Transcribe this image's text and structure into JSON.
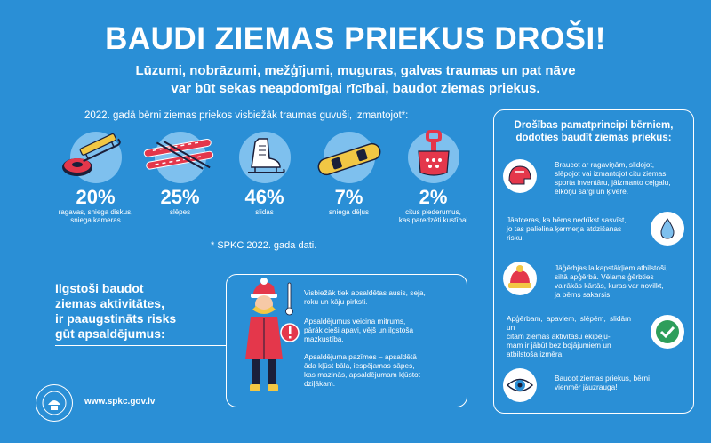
{
  "title": "BAUDI ZIEMAS PRIEKUS DROŠI!",
  "subtitle_line1": "Lūzumi, nobrāzumi, mežģījumi, muguras, galvas traumas un pat nāve",
  "subtitle_line2": "var būt sekas neapdomīgai rīcībai, baudot ziemas priekus.",
  "stats_heading": "2022. gadā bērni ziemas priekos visbiežāk traumas guvuši, izmantojot*:",
  "items": [
    {
      "pct": "20%",
      "label1": "ragavas, sniega diskus,",
      "label2": "sniega kameras",
      "icon": "sled-icon"
    },
    {
      "pct": "25%",
      "label1": "slēpes",
      "label2": "",
      "icon": "skis-icon"
    },
    {
      "pct": "46%",
      "label1": "slidas",
      "label2": "",
      "icon": "skate-icon"
    },
    {
      "pct": "7%",
      "label1": "sniega dēļus",
      "label2": "",
      "icon": "snowboard-icon"
    },
    {
      "pct": "2%",
      "label1": "citus piederumus,",
      "label2": "kas paredzēti kustībai",
      "icon": "snow-scoop-icon"
    }
  ],
  "source_note": "* SPKC 2022. gada dati.",
  "cold": {
    "heading": [
      "Ilgstoši baudot",
      "ziemas aktivitātes,",
      "ir paaugstināts risks",
      "gūt apsaldējumus:"
    ],
    "p1": [
      "Visbiežāk tiek apsaldētas ausis, seja,",
      "roku un kāju pirksti."
    ],
    "p2": [
      "Apsaldējumus veicina mitrums,",
      "pārāk cieši apavi, vējš un ilgstoša",
      "mazkustība."
    ],
    "p3": [
      "Apsaldējuma pazīmes – apsaldētā",
      "āda kļūst bāla, iespējamas sāpes,",
      "kas mazinās, apsaldējumam kļūstot",
      "dziļākam."
    ]
  },
  "rules": {
    "heading": [
      "Drošības pamatprincipi bērniem,",
      "dodoties baudīt ziemas priekus:"
    ],
    "list": [
      {
        "lines": [
          "Braucot ar ragaviņām, slidojot,",
          "slēpojot vai izmantojot citu ziemas",
          "sporta inventāru, jāizmanto ceļgalu,",
          "elkoņu sargi un ķivere."
        ],
        "icon": "helmet-icon"
      },
      {
        "lines": [
          "Jāatceras, ka bērns nedrīkst sasvīst,",
          "jo tas palielina ķermeņa atdzišanas",
          "risku."
        ],
        "icon": "sweat-drop-icon"
      },
      {
        "lines": [
          "Jāģērbjas laikapstākļiem atbilstoši,",
          "siltā apģērbā. Vēlams ģērbties",
          "vairākās kārtās, kuras var novilkt,",
          "ja bērns sakarsis."
        ],
        "icon": "winter-hat-icon"
      },
      {
        "lines": [
          "Apģērbam, apaviem, slēpēm, slidām un",
          "citam ziemas aktivitāšu ekipēju-",
          "mam ir jābūt bez bojājumiem un",
          "atbilstoša izmēra."
        ],
        "icon": "checkmark-icon"
      },
      {
        "lines": [
          "Baudot ziemas priekus, bērni",
          "vienmēr jāuzrauga!"
        ],
        "icon": "eye-icon"
      }
    ]
  },
  "footer_url": "www.spkc.gov.lv"
}
